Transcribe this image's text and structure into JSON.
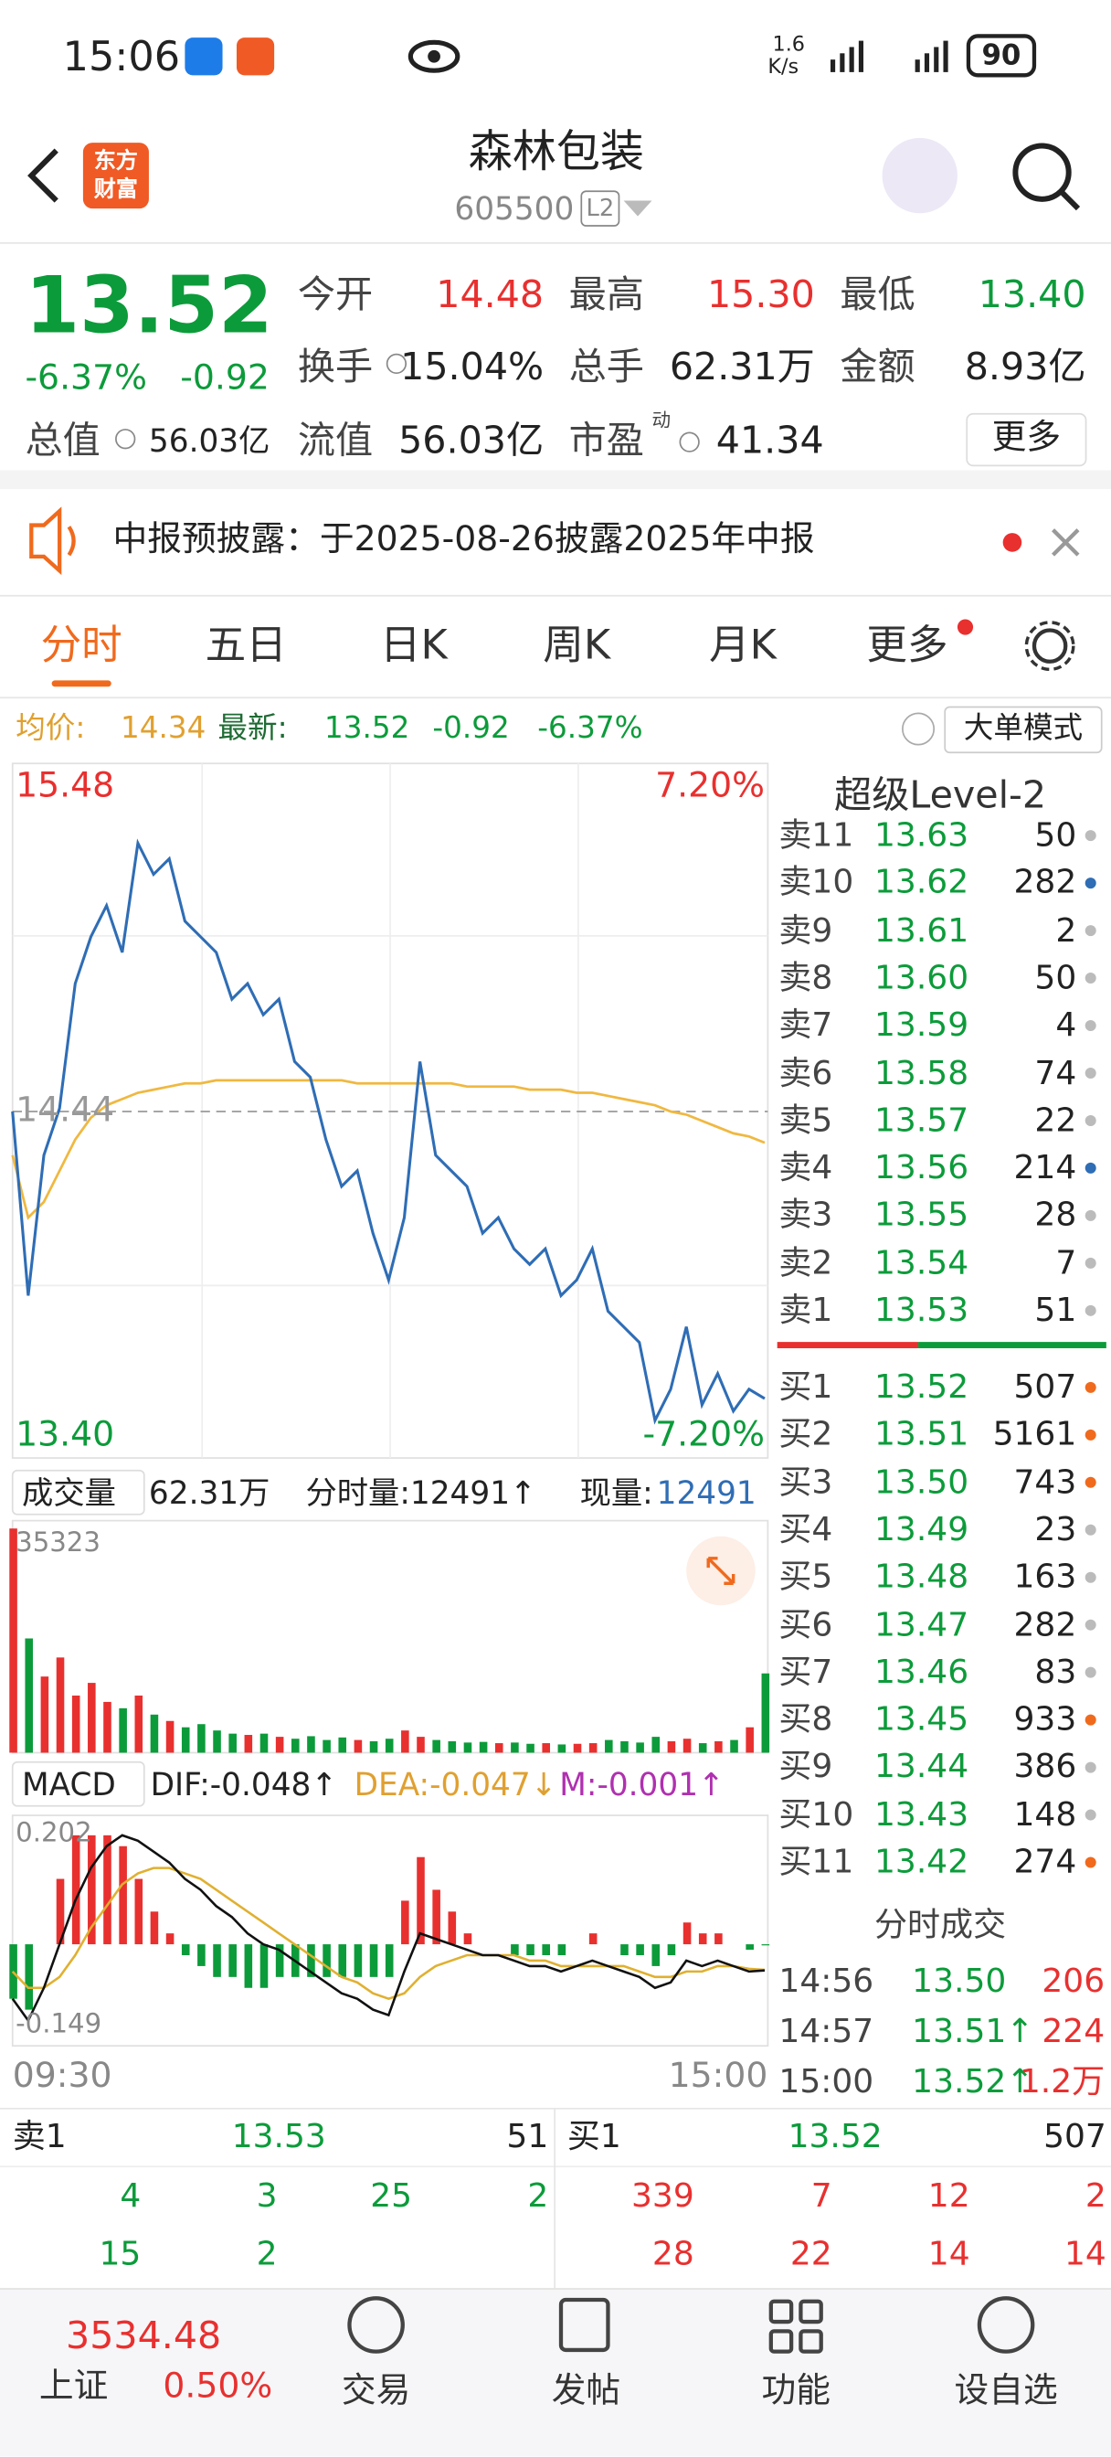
{
  "status_bar": {
    "time": "15:06",
    "speed": "1.6",
    "speed_unit": "K/s",
    "battery": "90"
  },
  "header": {
    "logo": [
      "东方",
      "财富"
    ],
    "title": "森林包装",
    "code": "605500",
    "level": "L2"
  },
  "quote": {
    "price": "13.52",
    "change_pct": "-6.37%",
    "change": "-0.92",
    "pe_tag": "动",
    "more": "更多",
    "fields": [
      {
        "label": "今开",
        "value": "14.48",
        "color": "#e8302f"
      },
      {
        "label": "最高",
        "value": "15.30",
        "color": "#e8302f"
      },
      {
        "label": "最低",
        "value": "13.40",
        "color": "#0c9b3a"
      },
      {
        "label": "换手",
        "value": "15.04%",
        "color": "#222222"
      },
      {
        "label": "总手",
        "value": "62.31万",
        "color": "#222222"
      },
      {
        "label": "金额",
        "value": "8.93亿",
        "color": "#222222"
      },
      {
        "label": "总值",
        "value": "56.03亿",
        "color": "#222222"
      },
      {
        "label": "流值",
        "value": "56.03亿",
        "color": "#222222"
      },
      {
        "label": "市盈",
        "value": "41.34",
        "color": "#222222"
      }
    ]
  },
  "notice": "中报预披露：于2025-08-26披露2025年中报",
  "tabs": [
    "分时",
    "五日",
    "日K",
    "周K",
    "月K",
    "更多"
  ],
  "summary": {
    "avg_label": "均价:",
    "avg": "14.34",
    "latest_label": "最新:",
    "latest": "13.52",
    "change": "-0.92",
    "change_pct": "-6.37%",
    "mode": "大单模式"
  },
  "intraday": {
    "ylim": [
      13.4,
      15.48
    ],
    "yticks": [
      {
        "value": 13.4,
        "label": "13.40"
      },
      14.44,
      15.48
    ],
    "y2lim": [
      -7.2,
      7.2
    ],
    "y2ticks": [
      {
        "value": -7.2,
        "label": "-7.20%"
      },
      {
        "value": 7.2,
        "label": "7.20%"
      }
    ],
    "time_labels": [
      "09:30",
      "15:00"
    ],
    "price_color": "#2f6db5",
    "avg_color": "#f0b840",
    "price": [
      14.44,
      13.85,
      14.3,
      14.45,
      14.85,
      15.0,
      15.1,
      14.95,
      15.3,
      15.2,
      15.25,
      15.05,
      15.0,
      14.95,
      14.8,
      14.85,
      14.75,
      14.8,
      14.6,
      14.55,
      14.35,
      14.2,
      14.25,
      14.05,
      13.9,
      14.1,
      14.6,
      14.3,
      14.25,
      14.2,
      14.05,
      14.1,
      14.0,
      13.95,
      14.0,
      13.85,
      13.9,
      14.0,
      13.8,
      13.75,
      13.7,
      13.45,
      13.55,
      13.75,
      13.5,
      13.6,
      13.48,
      13.55,
      13.52
    ],
    "avg": [
      14.3,
      14.1,
      14.15,
      14.25,
      14.35,
      14.42,
      14.46,
      14.48,
      14.5,
      14.51,
      14.52,
      14.53,
      14.53,
      14.54,
      14.54,
      14.54,
      14.54,
      14.54,
      14.54,
      14.54,
      14.54,
      14.54,
      14.53,
      14.53,
      14.53,
      14.53,
      14.53,
      14.53,
      14.53,
      14.52,
      14.52,
      14.52,
      14.52,
      14.51,
      14.51,
      14.51,
      14.5,
      14.5,
      14.49,
      14.48,
      14.47,
      14.46,
      14.44,
      14.43,
      14.41,
      14.39,
      14.37,
      14.36,
      14.34
    ]
  },
  "volume": {
    "label": "成交量",
    "total": "62.31万",
    "period_label": "分时量:12491↑",
    "current_label": "现量:",
    "current": "12491",
    "ylim": [
      0,
      35323
    ],
    "yticks": [
      35323
    ],
    "values": [
      35323,
      18000,
      12000,
      15000,
      9000,
      11000,
      8000,
      7000,
      9000,
      6000,
      5000,
      4000,
      4500,
      3500,
      3000,
      2800,
      3000,
      2500,
      2200,
      2600,
      2000,
      2400,
      2000,
      1800,
      2200,
      3500,
      2500,
      2000,
      1800,
      1600,
      1700,
      1500,
      1600,
      1400,
      1500,
      1300,
      1400,
      1500,
      2000,
      1800,
      1600,
      2500,
      1800,
      2200,
      1500,
      1800,
      2000,
      4000,
      12491
    ]
  },
  "macd": {
    "label": "MACD",
    "dif_label": "DIF:-0.048↑",
    "dea_label": "DEA:-0.047↓",
    "m_label": "M:-0.001↑",
    "ylim": [
      -0.149,
      0.202
    ],
    "yticks": [
      -0.149,
      0.202
    ],
    "dif": [
      -0.1,
      -0.14,
      -0.08,
      0.0,
      0.08,
      0.14,
      0.18,
      0.2,
      0.19,
      0.17,
      0.15,
      0.12,
      0.1,
      0.07,
      0.05,
      0.02,
      0.0,
      -0.01,
      -0.03,
      -0.05,
      -0.07,
      -0.09,
      -0.1,
      -0.12,
      -0.13,
      -0.05,
      0.02,
      0.01,
      0.0,
      -0.01,
      -0.02,
      -0.02,
      -0.03,
      -0.04,
      -0.04,
      -0.05,
      -0.04,
      -0.03,
      -0.04,
      -0.05,
      -0.06,
      -0.08,
      -0.07,
      -0.03,
      -0.04,
      -0.03,
      -0.04,
      -0.05,
      -0.048
    ],
    "dea": [
      -0.05,
      -0.08,
      -0.08,
      -0.06,
      -0.02,
      0.03,
      0.07,
      0.11,
      0.13,
      0.14,
      0.14,
      0.13,
      0.12,
      0.1,
      0.08,
      0.06,
      0.04,
      0.02,
      0.0,
      -0.02,
      -0.04,
      -0.06,
      -0.07,
      -0.09,
      -0.1,
      -0.09,
      -0.06,
      -0.04,
      -0.03,
      -0.02,
      -0.02,
      -0.02,
      -0.02,
      -0.03,
      -0.03,
      -0.04,
      -0.04,
      -0.04,
      -0.04,
      -0.04,
      -0.05,
      -0.06,
      -0.06,
      -0.05,
      -0.05,
      -0.04,
      -0.04,
      -0.045,
      -0.047
    ],
    "hist": [
      -0.1,
      -0.12,
      0.0,
      0.12,
      0.2,
      0.2,
      0.2,
      0.18,
      0.12,
      0.06,
      0.02,
      -0.02,
      -0.04,
      -0.06,
      -0.06,
      -0.08,
      -0.08,
      -0.06,
      -0.06,
      -0.06,
      -0.06,
      -0.06,
      -0.06,
      -0.06,
      -0.06,
      0.08,
      0.16,
      0.1,
      0.06,
      0.02,
      0.0,
      0.0,
      -0.02,
      -0.02,
      -0.02,
      -0.02,
      0.0,
      0.02,
      0.0,
      -0.02,
      -0.02,
      -0.04,
      -0.02,
      0.04,
      0.02,
      0.02,
      0.0,
      -0.01,
      -0.002
    ]
  },
  "level2": {
    "title": "超级Level-2",
    "asks": [
      {
        "label": "卖11",
        "price": "13.63",
        "qty": "50",
        "dot": "#bbbbbb"
      },
      {
        "label": "卖10",
        "price": "13.62",
        "qty": "282",
        "dot": "#2f6db5"
      },
      {
        "label": "卖9",
        "price": "13.61",
        "qty": "2",
        "dot": "#bbbbbb"
      },
      {
        "label": "卖8",
        "price": "13.60",
        "qty": "50",
        "dot": "#bbbbbb"
      },
      {
        "label": "卖7",
        "price": "13.59",
        "qty": "4",
        "dot": "#bbbbbb"
      },
      {
        "label": "卖6",
        "price": "13.58",
        "qty": "74",
        "dot": "#bbbbbb"
      },
      {
        "label": "卖5",
        "price": "13.57",
        "qty": "22",
        "dot": "#bbbbbb"
      },
      {
        "label": "卖4",
        "price": "13.56",
        "qty": "214",
        "dot": "#2f6db5"
      },
      {
        "label": "卖3",
        "price": "13.55",
        "qty": "28",
        "dot": "#bbbbbb"
      },
      {
        "label": "卖2",
        "price": "13.54",
        "qty": "7",
        "dot": "#bbbbbb"
      },
      {
        "label": "卖1",
        "price": "13.53",
        "qty": "51",
        "dot": "#bbbbbb"
      }
    ],
    "bids": [
      {
        "label": "买1",
        "price": "13.52",
        "qty": "507",
        "dot": "#f06a1d"
      },
      {
        "label": "买2",
        "price": "13.51",
        "qty": "5161",
        "dot": "#f06a1d"
      },
      {
        "label": "买3",
        "price": "13.50",
        "qty": "743",
        "dot": "#f06a1d"
      },
      {
        "label": "买4",
        "price": "13.49",
        "qty": "23",
        "dot": "#bbbbbb"
      },
      {
        "label": "买5",
        "price": "13.48",
        "qty": "163",
        "dot": "#bbbbbb"
      },
      {
        "label": "买6",
        "price": "13.47",
        "qty": "282",
        "dot": "#bbbbbb"
      },
      {
        "label": "买7",
        "price": "13.46",
        "qty": "83",
        "dot": "#bbbbbb"
      },
      {
        "label": "买8",
        "price": "13.45",
        "qty": "933",
        "dot": "#f06a1d"
      },
      {
        "label": "买9",
        "price": "13.44",
        "qty": "386",
        "dot": "#bbbbbb"
      },
      {
        "label": "买10",
        "price": "13.43",
        "qty": "148",
        "dot": "#bbbbbb"
      },
      {
        "label": "买11",
        "price": "13.42",
        "qty": "274",
        "dot": "#f06a1d"
      }
    ]
  },
  "trades": {
    "title": "分时成交",
    "rows": [
      [
        "14:56",
        "13.50",
        "206"
      ],
      [
        "14:57",
        "13.51↑",
        "224"
      ],
      [
        "15:00",
        "13.52↑",
        "1.2万"
      ]
    ]
  },
  "book": {
    "ask": [
      "卖1",
      "13.53",
      "51"
    ],
    "bid": [
      "买1",
      "13.52",
      "507"
    ],
    "ask_queue": [
      [
        "4",
        "3",
        "25",
        "2"
      ],
      [
        "15",
        "2"
      ]
    ],
    "bid_queue": [
      [
        "339",
        "7",
        "12",
        "2"
      ],
      [
        "28",
        "22",
        "14",
        "14"
      ]
    ]
  },
  "nav": {
    "index_value": "3534.48",
    "index_name": "上证",
    "index_change": "0.50%",
    "items": [
      "交易",
      "发帖",
      "功能",
      "设自选"
    ]
  }
}
